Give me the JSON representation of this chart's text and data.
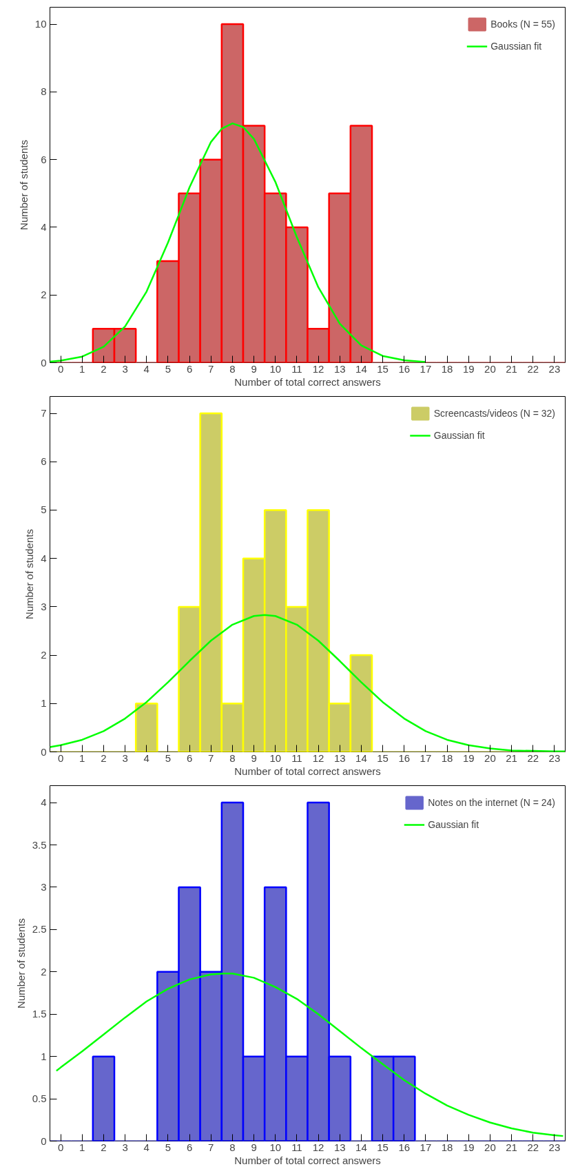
{
  "chart_data": [
    {
      "type": "histogram",
      "ylabel": "Number of students",
      "xlabel": "Number of total correct answers",
      "bins": [
        -0.5,
        0.5,
        1.5,
        2.5,
        3.5,
        4.5,
        5.5,
        6.5,
        7.5,
        8.5,
        9.5,
        10.5,
        11.5,
        12.5,
        13.5,
        14.5,
        15.5,
        16.5,
        17.5,
        18.5,
        19.5,
        20.5,
        21.5,
        22.5,
        23.5
      ],
      "xlim": [
        -0.5,
        23.5
      ],
      "xticks": [
        0,
        1,
        2,
        3,
        4,
        5,
        6,
        7,
        8,
        9,
        10,
        11,
        12,
        13,
        14,
        15,
        16,
        17,
        18,
        19,
        20,
        21,
        22,
        23
      ],
      "ylim": [
        0,
        10.5
      ],
      "yticks": [
        0,
        2,
        4,
        6,
        8,
        10
      ],
      "legend": "top right",
      "grid": false,
      "series": [
        {
          "name": "Books (N = 55)",
          "color": "#cc6666",
          "values": [
            0,
            0,
            1,
            1,
            0,
            3,
            5,
            6,
            10,
            7,
            5,
            4,
            1,
            5,
            7,
            0,
            0,
            0,
            0,
            0,
            0,
            0,
            0,
            0
          ]
        },
        {
          "name": "Gaussian fit",
          "type": "line",
          "color": "#00ff00",
          "x": [
            -0.5,
            0,
            1,
            2,
            3,
            4,
            5,
            6,
            7,
            7.5,
            8,
            8.5,
            9,
            10,
            11,
            12,
            13,
            14,
            15,
            16,
            17
          ],
          "values": [
            0.03,
            0.06,
            0.18,
            0.47,
            1.07,
            2.1,
            3.55,
            5.18,
            6.52,
            6.91,
            7.07,
            6.96,
            6.61,
            5.34,
            3.71,
            2.23,
            1.15,
            0.51,
            0.2,
            0.07,
            0.02
          ]
        }
      ]
    },
    {
      "type": "histogram",
      "ylabel": "Number of students",
      "xlabel": "Number of total correct answers",
      "bins": [
        -0.5,
        0.5,
        1.5,
        2.5,
        3.5,
        4.5,
        5.5,
        6.5,
        7.5,
        8.5,
        9.5,
        10.5,
        11.5,
        12.5,
        13.5,
        14.5,
        15.5,
        16.5,
        17.5,
        18.5,
        19.5,
        20.5,
        21.5,
        22.5,
        23.5
      ],
      "xlim": [
        -0.5,
        23.5
      ],
      "xticks": [
        0,
        1,
        2,
        3,
        4,
        5,
        6,
        7,
        8,
        9,
        10,
        11,
        12,
        13,
        14,
        15,
        16,
        17,
        18,
        19,
        20,
        21,
        22,
        23
      ],
      "ylim": [
        0,
        7.35
      ],
      "yticks": [
        0,
        1,
        2,
        3,
        4,
        5,
        6,
        7
      ],
      "legend": "top right",
      "grid": false,
      "series": [
        {
          "name": "Screencasts/videos (N = 32)",
          "color": "#cccc66",
          "values": [
            0,
            0,
            0,
            0,
            1,
            0,
            3,
            7,
            1,
            4,
            5,
            3,
            5,
            1,
            2,
            0,
            0,
            0,
            0,
            0,
            0,
            0,
            0,
            0
          ]
        },
        {
          "name": "Gaussian fit",
          "type": "line",
          "color": "#00ff00",
          "x": [
            -0.5,
            0,
            1,
            2,
            3,
            4,
            5,
            6,
            7,
            8,
            9,
            9.5,
            10,
            11,
            12,
            13,
            14,
            15,
            16,
            17,
            18,
            19,
            20,
            21,
            22,
            23,
            23.5
          ],
          "values": [
            0.1,
            0.14,
            0.25,
            0.43,
            0.69,
            1.03,
            1.44,
            1.88,
            2.3,
            2.63,
            2.81,
            2.83,
            2.81,
            2.63,
            2.3,
            1.88,
            1.44,
            1.03,
            0.69,
            0.43,
            0.25,
            0.14,
            0.07,
            0.03,
            0.02,
            0.01,
            0.01
          ]
        }
      ]
    },
    {
      "type": "histogram",
      "ylabel": "Number of students",
      "xlabel": "Number of total correct answers",
      "bins": [
        -0.5,
        0.5,
        1.5,
        2.5,
        3.5,
        4.5,
        5.5,
        6.5,
        7.5,
        8.5,
        9.5,
        10.5,
        11.5,
        12.5,
        13.5,
        14.5,
        15.5,
        16.5,
        17.5,
        18.5,
        19.5,
        20.5,
        21.5,
        22.5,
        23.5
      ],
      "xlim": [
        -0.5,
        23.5
      ],
      "xticks": [
        0,
        1,
        2,
        3,
        4,
        5,
        6,
        7,
        8,
        9,
        10,
        11,
        12,
        13,
        14,
        15,
        16,
        17,
        18,
        19,
        20,
        21,
        22,
        23
      ],
      "ylim": [
        0,
        4.2
      ],
      "yticks": [
        0,
        0.5,
        1,
        1.5,
        2,
        2.5,
        3,
        3.5,
        4
      ],
      "legend": "top right",
      "grid": false,
      "series": [
        {
          "name": "Notes on the internet (N = 24)",
          "color": "#6666cc",
          "values": [
            0,
            0,
            1,
            0,
            0,
            2,
            3,
            2,
            4,
            1,
            3,
            1,
            4,
            1,
            0,
            1,
            1,
            0,
            0,
            0,
            0,
            0,
            0,
            0
          ]
        },
        {
          "name": "Gaussian fit",
          "type": "line",
          "color": "#00ff00",
          "x": [
            -0.2,
            0,
            1,
            2,
            3,
            4,
            5,
            6,
            7,
            7.6,
            8,
            9,
            10,
            11,
            12,
            13,
            14,
            15,
            16,
            17,
            18,
            19,
            20,
            21,
            22,
            23,
            23.4
          ],
          "values": [
            0.83,
            0.87,
            1.06,
            1.26,
            1.46,
            1.65,
            1.8,
            1.91,
            1.97,
            1.98,
            1.98,
            1.93,
            1.82,
            1.68,
            1.5,
            1.3,
            1.1,
            0.91,
            0.72,
            0.56,
            0.42,
            0.31,
            0.22,
            0.15,
            0.1,
            0.07,
            0.06
          ]
        }
      ]
    }
  ]
}
